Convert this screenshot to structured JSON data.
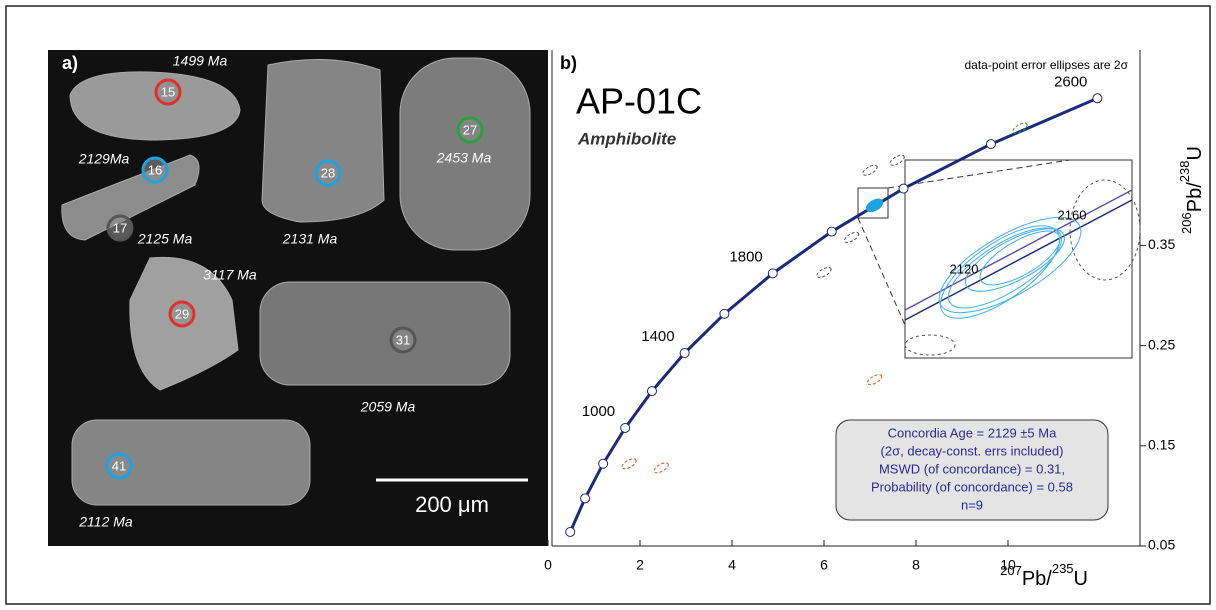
{
  "panel_a": {
    "label": "a)",
    "scale_bar": "200 μm",
    "spots": [
      {
        "number": "15",
        "age": "1499 Ma",
        "color": "#e0302a"
      },
      {
        "number": "16",
        "age": "2129Ma",
        "color": "#1fa3e0"
      },
      {
        "number": "17",
        "age": "2125 Ma",
        "color": "#555555"
      },
      {
        "number": "28",
        "age": "2131 Ma",
        "color": "#1fa3e0"
      },
      {
        "number": "27",
        "age": "2453 Ma",
        "color": "#2aa040"
      },
      {
        "number": "29",
        "age": "3117 Ma",
        "color": "#e0302a"
      },
      {
        "number": "31",
        "age": "2059 Ma",
        "color": "#555555"
      },
      {
        "number": "41",
        "age": "2112 Ma",
        "color": "#1fa3e0"
      }
    ]
  },
  "chart_data": {
    "type": "concordia",
    "panel_label": "b)",
    "title": "AP-01C",
    "subtitle": "Amphibolite",
    "note": "data-point error ellipses are 2σ",
    "x_label": [
      "207",
      "Pb/",
      "235",
      "U"
    ],
    "y_label": [
      "206",
      "Pb/",
      "238",
      "U"
    ],
    "xlim": [
      0,
      12.87
    ],
    "ylim": [
      0.05,
      0.545
    ],
    "xticks": [
      0,
      2,
      4,
      6,
      8,
      10
    ],
    "yticks": [
      0.05,
      0.15,
      0.25,
      0.35
    ],
    "concordia": {
      "color": "#1c2a7a",
      "x": [
        0.4828,
        0.8056,
        1.1988,
        1.6774,
        2.2604,
        2.9701,
        3.8346,
        4.8868,
        6.1684,
        7.7293,
        9.6296,
        11.944
      ],
      "values": [
        0.064,
        0.0975,
        0.1321,
        0.1678,
        0.2046,
        0.2426,
        0.2817,
        0.3221,
        0.3638,
        0.4067,
        0.4511,
        0.4968
      ],
      "age_labels": [
        null,
        null,
        null,
        1000,
        null,
        1400,
        null,
        1800,
        null,
        null,
        null,
        2600
      ]
    },
    "ellipses": {
      "x": [
        10.26,
        7.1,
        6.0,
        6.6,
        7.0,
        7.59,
        7.1,
        1.76,
        2.46
      ],
      "values": [
        0.467,
        0.39,
        0.323,
        0.358,
        0.425,
        0.435,
        0.216,
        0.132,
        0.128
      ],
      "colors": [
        "#2aa040",
        "#1fa3e0",
        "#555555",
        "#555555",
        "#555555",
        "#555555",
        "#e05020",
        "#e05020",
        "#e05020"
      ]
    },
    "inset_labels": [
      "2120",
      "2160"
    ],
    "result_box": [
      "Concordia Age = 2129 ±5 Ma",
      "(2σ, decay-const. errs included)",
      "MSWD (of concordance) = 0.31,",
      "Probability (of concordance) = 0.58",
      "n=9"
    ]
  }
}
